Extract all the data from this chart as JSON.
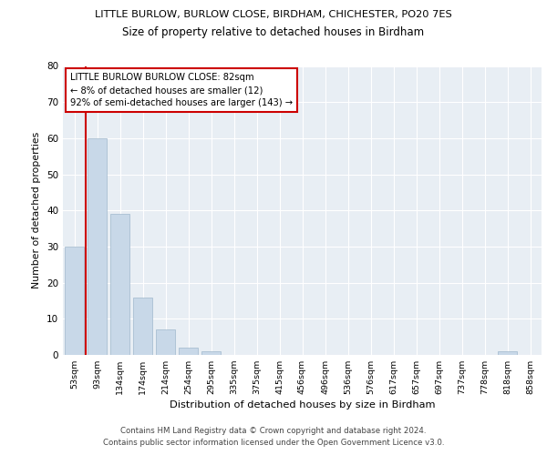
{
  "title": "LITTLE BURLOW, BURLOW CLOSE, BIRDHAM, CHICHESTER, PO20 7ES",
  "subtitle": "Size of property relative to detached houses in Birdham",
  "xlabel": "Distribution of detached houses by size in Birdham",
  "ylabel": "Number of detached properties",
  "bar_color": "#c8d8e8",
  "bar_edge_color": "#a0b8cc",
  "background_color": "#e8eef4",
  "bins": [
    "53sqm",
    "93sqm",
    "134sqm",
    "174sqm",
    "214sqm",
    "254sqm",
    "295sqm",
    "335sqm",
    "375sqm",
    "415sqm",
    "456sqm",
    "496sqm",
    "536sqm",
    "576sqm",
    "617sqm",
    "657sqm",
    "697sqm",
    "737sqm",
    "778sqm",
    "818sqm",
    "858sqm"
  ],
  "values": [
    30,
    60,
    39,
    16,
    7,
    2,
    1,
    0,
    0,
    0,
    0,
    0,
    0,
    0,
    0,
    0,
    0,
    0,
    0,
    1,
    0
  ],
  "ylim": [
    0,
    80
  ],
  "yticks": [
    0,
    10,
    20,
    30,
    40,
    50,
    60,
    70,
    80
  ],
  "marker_color": "#cc0000",
  "annotation_text": "LITTLE BURLOW BURLOW CLOSE: 82sqm\n← 8% of detached houses are smaller (12)\n92% of semi-detached houses are larger (143) →",
  "footer_line1": "Contains HM Land Registry data © Crown copyright and database right 2024.",
  "footer_line2": "Contains public sector information licensed under the Open Government Licence v3.0."
}
